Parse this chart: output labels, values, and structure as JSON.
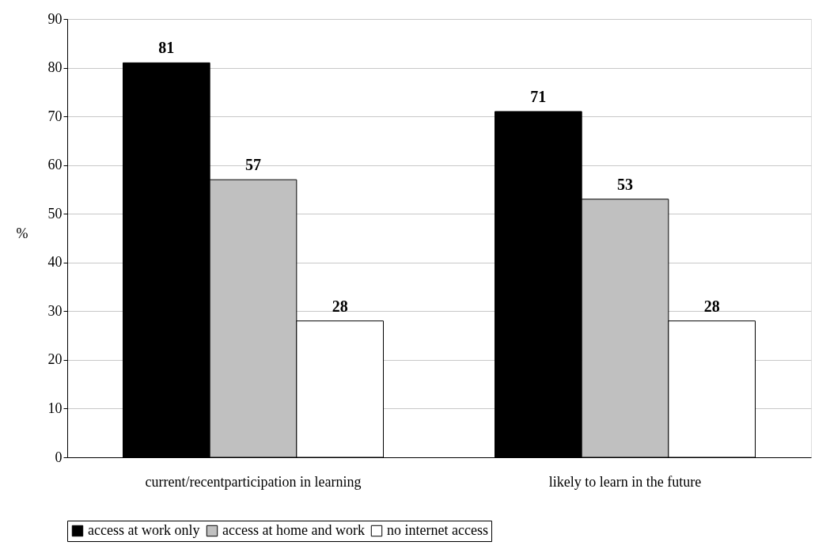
{
  "chart_data": {
    "type": "bar",
    "ylabel": "%",
    "categories": [
      "current/recentparticipation in learning",
      "likely to learn in the future"
    ],
    "series": [
      {
        "name": "access at work only",
        "color": "#000000",
        "values": [
          81,
          71
        ]
      },
      {
        "name": "access at home and work",
        "color": "#c0c0c0",
        "values": [
          57,
          53
        ]
      },
      {
        "name": "no internet access",
        "color": "#ffffff",
        "values": [
          28,
          28
        ]
      }
    ],
    "ylim": [
      0,
      90
    ],
    "yticks": [
      0,
      10,
      20,
      30,
      40,
      50,
      60,
      70,
      80,
      90
    ],
    "grid": "y",
    "legend": "bottom",
    "data_labels": true
  }
}
